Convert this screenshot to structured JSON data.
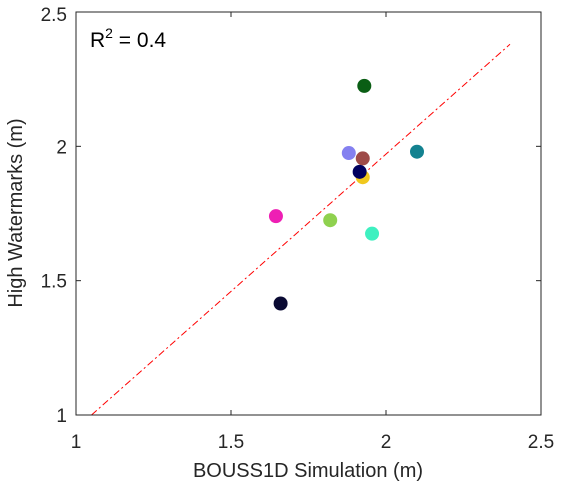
{
  "chart_data": {
    "type": "scatter",
    "xlabel": "BOUSS1D Simulation (m)",
    "ylabel": "High Watermarks (m)",
    "xlim": [
      1,
      2.5
    ],
    "ylim": [
      1,
      2.5
    ],
    "xticks": [
      "1",
      "1.5",
      "2",
      "2.5"
    ],
    "yticks": [
      "1",
      "1.5",
      "2",
      "2.5"
    ],
    "annotation": {
      "prefix": "R",
      "sup": "2",
      "suffix": " = 0.4"
    },
    "fit_line": {
      "style": "dash-dot",
      "color": "#ff0000",
      "x": [
        1.05,
        2.4
      ],
      "y": [
        1.0,
        2.38
      ]
    },
    "points": [
      {
        "x": 1.66,
        "y": 1.415,
        "color": "#0a0a33"
      },
      {
        "x": 1.645,
        "y": 1.74,
        "color": "#ee1fb4"
      },
      {
        "x": 1.82,
        "y": 1.725,
        "color": "#8fd14f"
      },
      {
        "x": 1.955,
        "y": 1.675,
        "color": "#3ef0c0"
      },
      {
        "x": 1.88,
        "y": 1.975,
        "color": "#8480f0"
      },
      {
        "x": 1.925,
        "y": 1.955,
        "color": "#9e4a48"
      },
      {
        "x": 1.925,
        "y": 1.885,
        "color": "#f0c81e"
      },
      {
        "x": 1.915,
        "y": 1.905,
        "color": "#00005e"
      },
      {
        "x": 1.93,
        "y": 2.225,
        "color": "#0a5e14"
      },
      {
        "x": 2.1,
        "y": 1.98,
        "color": "#138290"
      }
    ]
  }
}
